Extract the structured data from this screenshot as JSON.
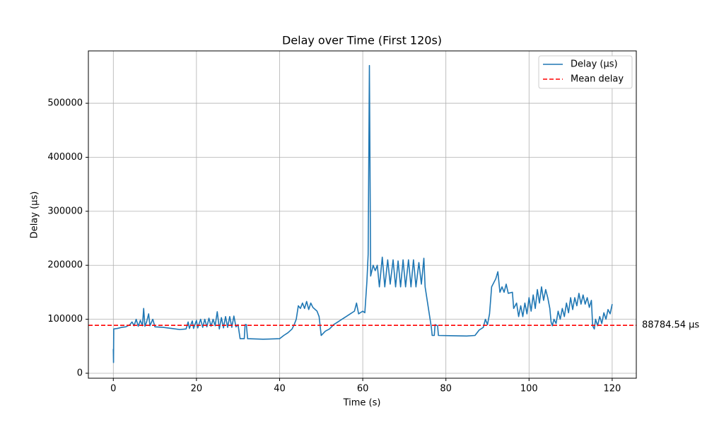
{
  "chart_data": {
    "type": "line",
    "title": "Delay over Time (First 120s)",
    "x_label": "Time (s)",
    "y_label": "Delay (µs)",
    "x": [
      0,
      0.05,
      0.1,
      1,
      2,
      3,
      4,
      4.5,
      5,
      5.5,
      6,
      6.5,
      7,
      7.3,
      7.6,
      8,
      8.5,
      8.8,
      9.5,
      10,
      12,
      14,
      16,
      17.5,
      18,
      18.3,
      19,
      19.3,
      20,
      20.3,
      21,
      21.5,
      22,
      22.5,
      23,
      23.5,
      24,
      24.5,
      25,
      25.5,
      26,
      26.5,
      27,
      27.5,
      28,
      28.5,
      29,
      29.5,
      30,
      30.5,
      31.5,
      31.7,
      32,
      32.3,
      36,
      40,
      41,
      42,
      43,
      43.5,
      44,
      44.5,
      45,
      45.5,
      46,
      46.5,
      47,
      47.5,
      48,
      49,
      49.5,
      50,
      51,
      52,
      53,
      54,
      55,
      56,
      57,
      58,
      58.5,
      59,
      60,
      60.5,
      61,
      61.3,
      61.6,
      61.9,
      62.5,
      63,
      63.5,
      64,
      64.7,
      65.3,
      66,
      66.6,
      67.3,
      67.9,
      68.5,
      69.1,
      69.7,
      70.3,
      71,
      71.6,
      72.2,
      72.8,
      73.5,
      74.1,
      74.7,
      75,
      76,
      76.5,
      76.7,
      77.2,
      77.4,
      78,
      78.2,
      85,
      87,
      88,
      89,
      89.5,
      90,
      90.5,
      91,
      92,
      92.5,
      93,
      93.5,
      94,
      94.5,
      95,
      96,
      96.3,
      97,
      97.5,
      98,
      98.5,
      99,
      99.5,
      100,
      100.5,
      101,
      101.5,
      102,
      102.5,
      103,
      103.5,
      104,
      104.5,
      105,
      105.3,
      105.6,
      106,
      106.5,
      107,
      107.5,
      108,
      108.5,
      109,
      109.5,
      110,
      110.5,
      111,
      111.5,
      112,
      112.5,
      113,
      113.5,
      114,
      114.5,
      115,
      115.3,
      115.7,
      116,
      116.5,
      117,
      117.5,
      118,
      118.5,
      119,
      119.5,
      120
    ],
    "series": [
      {
        "name": "Delay (µs)",
        "color": "#1f77b4",
        "values": [
          45000,
          20000,
          82000,
          83000,
          85000,
          86000,
          90000,
          95000,
          88000,
          100000,
          87000,
          98000,
          88000,
          120000,
          87000,
          95000,
          110000,
          88000,
          100000,
          86000,
          85000,
          83000,
          81000,
          82000,
          95000,
          83000,
          97000,
          83000,
          98000,
          84000,
          100000,
          85000,
          100000,
          86000,
          102000,
          87000,
          100000,
          88000,
          114000,
          82000,
          103000,
          84000,
          105000,
          85000,
          105000,
          85000,
          106000,
          86000,
          90000,
          64000,
          64000,
          90000,
          90000,
          64000,
          63000,
          64000,
          70000,
          75000,
          82000,
          90000,
          100000,
          125000,
          120000,
          130000,
          120000,
          133000,
          118000,
          130000,
          122000,
          115000,
          105000,
          70000,
          78000,
          82000,
          90000,
          95000,
          100000,
          105000,
          110000,
          115000,
          130000,
          110000,
          115000,
          112000,
          170000,
          220000,
          570000,
          180000,
          200000,
          190000,
          200000,
          160000,
          215000,
          160000,
          210000,
          165000,
          210000,
          160000,
          208000,
          160000,
          210000,
          160000,
          210000,
          160000,
          210000,
          160000,
          205000,
          165000,
          213000,
          160000,
          110000,
          85000,
          70000,
          70000,
          90000,
          88000,
          70000,
          69000,
          70000,
          80000,
          85000,
          100000,
          90000,
          110000,
          160000,
          175000,
          188000,
          150000,
          160000,
          150000,
          165000,
          148000,
          150000,
          120000,
          130000,
          105000,
          125000,
          105000,
          130000,
          110000,
          140000,
          115000,
          145000,
          120000,
          155000,
          130000,
          160000,
          135000,
          155000,
          140000,
          120000,
          95000,
          88000,
          100000,
          92000,
          115000,
          100000,
          120000,
          105000,
          130000,
          112000,
          140000,
          118000,
          140000,
          125000,
          148000,
          128000,
          145000,
          128000,
          140000,
          122000,
          135000,
          88000,
          82000,
          100000,
          88000,
          105000,
          92000,
          112000,
          100000,
          118000,
          110000,
          128000
        ]
      }
    ],
    "mean_line": {
      "name": "Mean delay",
      "value": 88784.54,
      "label": "88784.54 µs",
      "color": "#ff0000"
    },
    "xlim": [
      -6,
      125.8
    ],
    "ylim": [
      -9200,
      597000
    ],
    "xticks": [
      0,
      20,
      40,
      60,
      80,
      100,
      120
    ],
    "yticks": [
      0,
      100000,
      200000,
      300000,
      400000,
      500000
    ],
    "grid": true,
    "legend": "upper right"
  }
}
